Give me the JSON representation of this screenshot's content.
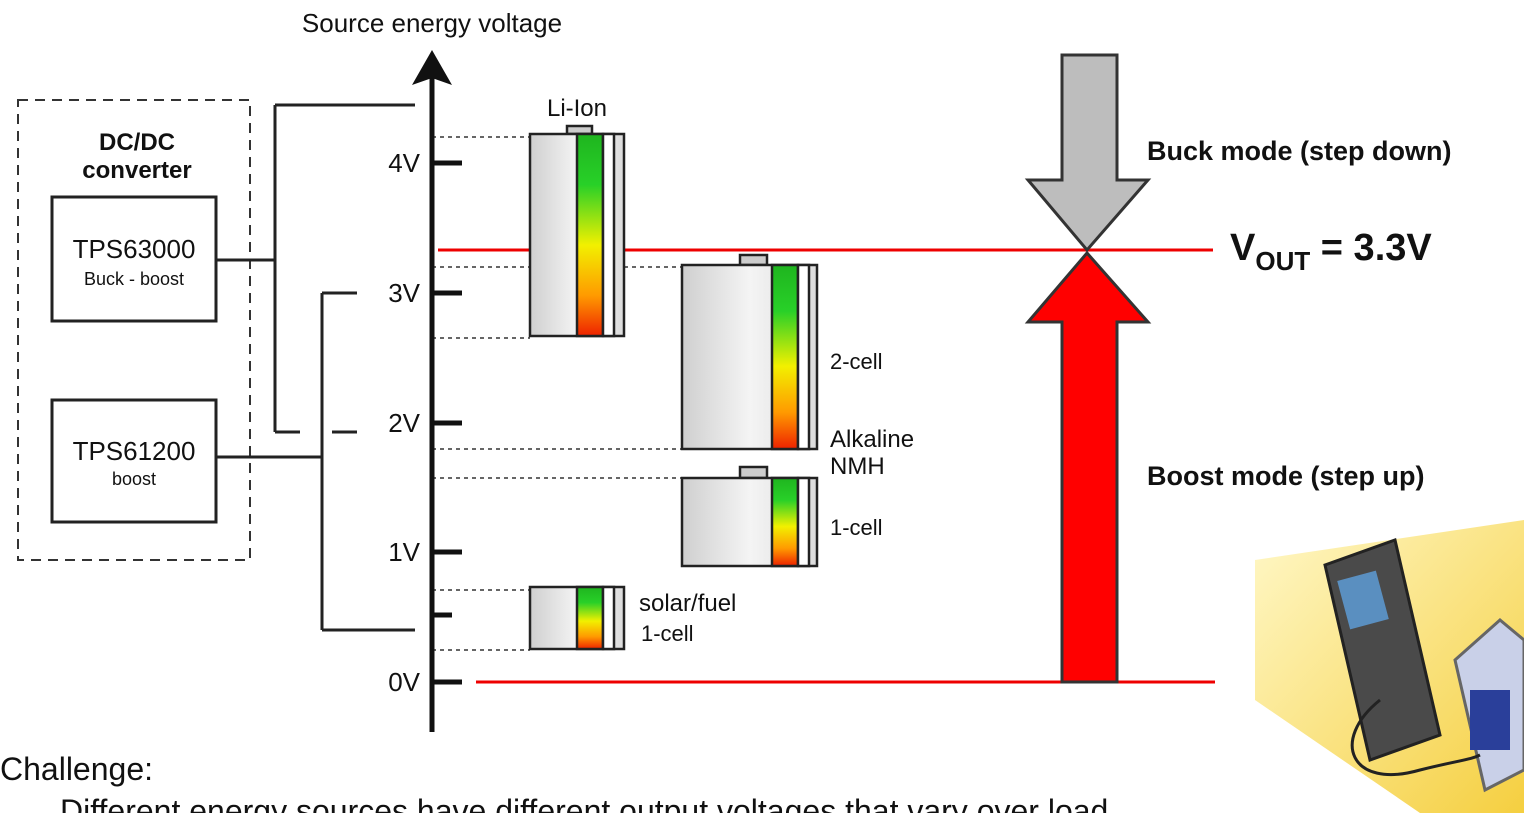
{
  "axis": {
    "title": "Source energy voltage",
    "ticks": [
      "4V",
      "3V",
      "2V",
      "1V",
      "0V"
    ]
  },
  "converter": {
    "title": [
      "DC/DC",
      "converter"
    ],
    "devices": [
      {
        "name": "TPS63000",
        "mode": "Buck - boost"
      },
      {
        "name": "TPS61200",
        "mode": "boost"
      }
    ]
  },
  "batteries": [
    {
      "label": [
        "Li-Ion"
      ]
    },
    {
      "label": [
        "2-cell",
        "Alkaline",
        "NMH"
      ]
    },
    {
      "label": [
        "1-cell"
      ]
    },
    {
      "label": [
        "solar/fuel",
        "1-cell"
      ]
    }
  ],
  "modes": {
    "buck": "Buck mode (step down)",
    "boost": "Boost mode (step up)"
  },
  "vout": {
    "symbol": "V",
    "subscript": "OUT",
    "value": " = 3.3V"
  },
  "text": {
    "heading": "Challenge:",
    "body": "Different energy sources have different output voltages that vary over load"
  }
}
